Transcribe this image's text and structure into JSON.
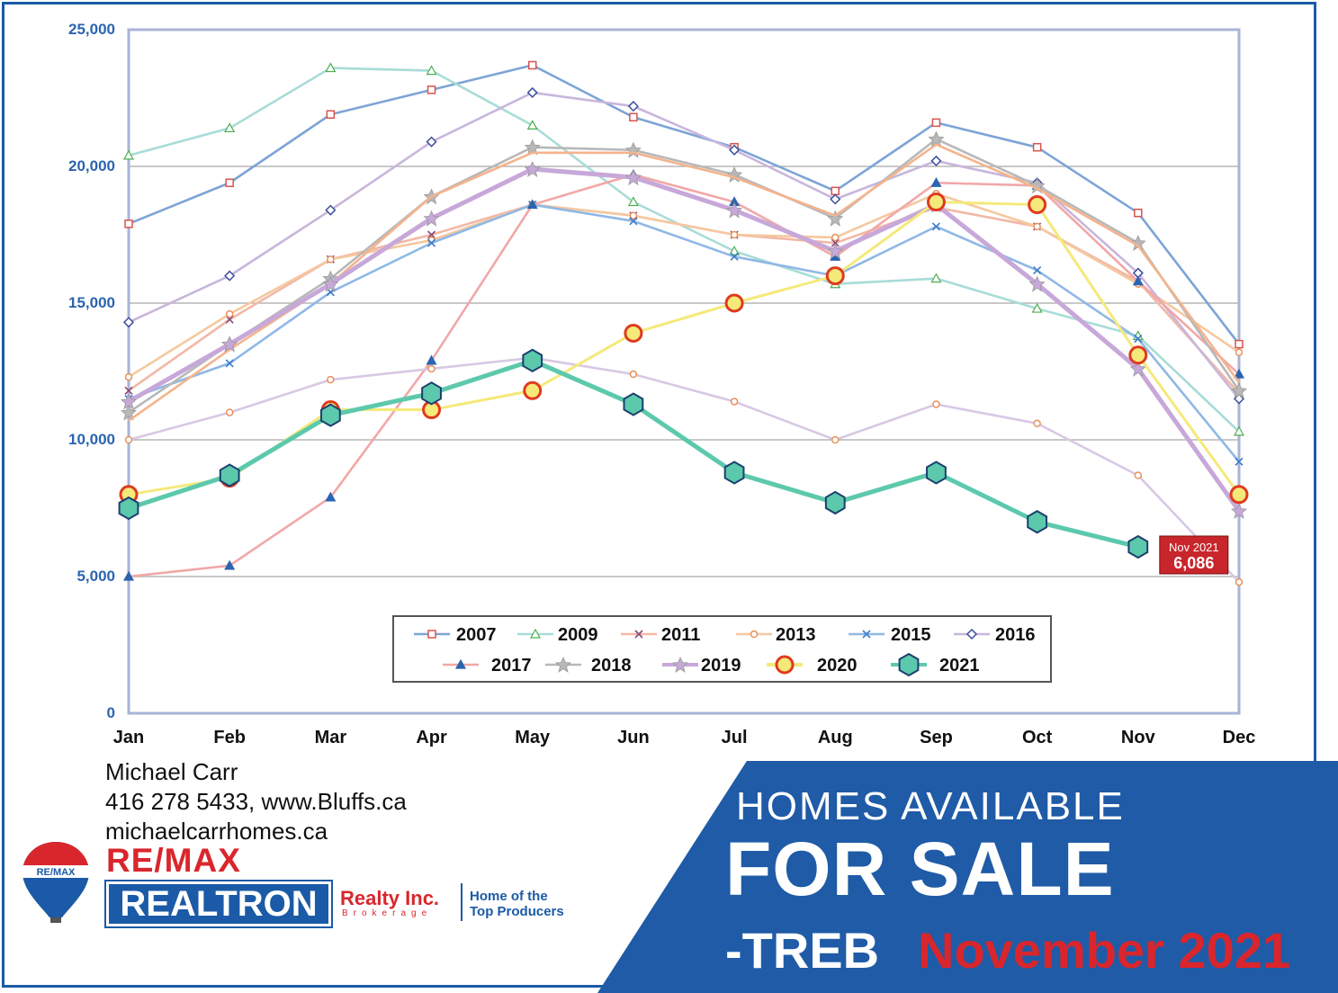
{
  "chart_data": {
    "type": "line",
    "categories": [
      "Jan",
      "Feb",
      "Mar",
      "Apr",
      "May",
      "Jun",
      "Jul",
      "Aug",
      "Sep",
      "Oct",
      "Nov",
      "Dec"
    ],
    "ylim": [
      0,
      25000
    ],
    "yticks": [
      "0",
      "5,000",
      "10,000",
      "15,000",
      "20,000",
      "25,000"
    ],
    "grid": true,
    "legend_position": "bottom-center",
    "series": [
      {
        "name": "2007",
        "color": "#7da4d6",
        "marker": "square",
        "values": [
          17900,
          19400,
          21900,
          22800,
          23700,
          21800,
          20700,
          19100,
          21600,
          20700,
          18300,
          13500
        ]
      },
      {
        "name": "2009",
        "color": "#a8dcd8",
        "marker": "triangle",
        "values": [
          20400,
          21400,
          23600,
          23500,
          21500,
          18700,
          16900,
          15700,
          15900,
          14800,
          13800,
          10300
        ]
      },
      {
        "name": "2011",
        "color": "#f2b8a6",
        "marker": "x",
        "values": [
          11800,
          14400,
          16600,
          17500,
          18600,
          18200,
          17500,
          17200,
          18500,
          17800,
          15800,
          11700
        ]
      },
      {
        "name": "2013",
        "color": "#f5c8a0",
        "marker": "circle-small",
        "values": [
          12300,
          14600,
          16600,
          17300,
          18600,
          18200,
          17500,
          17400,
          19000,
          17800,
          15700,
          13200
        ]
      },
      {
        "name": "2015",
        "color": "#8fb8e6",
        "marker": "x",
        "values": [
          11500,
          12800,
          15400,
          17200,
          18600,
          18000,
          16700,
          16000,
          17800,
          16200,
          13700,
          9200
        ]
      },
      {
        "name": "2016",
        "color": "#c8b6dc",
        "marker": "diamond",
        "values": [
          14300,
          16000,
          18400,
          20900,
          22700,
          22200,
          20600,
          18800,
          20200,
          19400,
          16100,
          11500
        ]
      },
      {
        "name": "2017",
        "color": "#f2a7a7",
        "marker": "triangle",
        "values": [
          5000,
          5400,
          7900,
          12900,
          18600,
          19700,
          18700,
          16700,
          19400,
          19300,
          15800,
          12400
        ]
      },
      {
        "name": "2018",
        "color": "#b8b8b8",
        "marker": "star",
        "values": [
          11000,
          13500,
          15900,
          18900,
          20700,
          20600,
          19700,
          18100,
          21000,
          19300,
          17200,
          11800
        ]
      },
      {
        "name": "2019",
        "color": "#c7a8d9",
        "marker": "star",
        "values": [
          11400,
          13500,
          15700,
          18100,
          19900,
          19600,
          18400,
          16900,
          18600,
          15700,
          12600,
          7400
        ]
      },
      {
        "name": "2020",
        "color": "#f5e97a",
        "marker": "ring",
        "values": [
          8000,
          8600,
          11100,
          11100,
          11800,
          13900,
          15000,
          16000,
          18700,
          18600,
          13100,
          8000
        ]
      },
      {
        "name": "2021",
        "color": "#5cc9ac",
        "marker": "hexagon",
        "values": [
          7500,
          8700,
          10900,
          11700,
          12900,
          11300,
          8800,
          7700,
          8800,
          7000,
          6086,
          null
        ]
      },
      {
        "name": "",
        "color": "#f5b38c",
        "marker": "",
        "values": [
          10700,
          13300,
          15700,
          18900,
          20500,
          20500,
          19600,
          18200,
          20800,
          19200,
          17100,
          12100
        ]
      },
      {
        "name": "",
        "color": "#d8c8e4",
        "marker": "circle-small",
        "values": [
          10000,
          11000,
          12200,
          12600,
          13000,
          12400,
          11400,
          10000,
          11300,
          10600,
          8700,
          4800
        ]
      }
    ],
    "annotation": {
      "line1": "Nov 2021",
      "line2": "6,086",
      "series": "2021",
      "category": "Nov",
      "bg": "#c8262c"
    }
  },
  "agent": {
    "name": "Michael Carr",
    "phone_web": "416 278 5433, www.Bluffs.ca",
    "site": "michaelcarrhomes.ca"
  },
  "branding": {
    "balloon_text": "RE/MAX",
    "remax": "RE/MAX",
    "realtron": "REALTRON",
    "realty": "Realty Inc.",
    "brokerage": "Brokerage",
    "tagline_1": "Home of the",
    "tagline_2": "Top Producers",
    "blue": "#1b5aa6",
    "red": "#d9262c"
  },
  "banner": {
    "line1": "HOMES AVAILABLE",
    "line2": "FOR SALE",
    "line3": "-TREB",
    "line3_red": "November 2021"
  }
}
